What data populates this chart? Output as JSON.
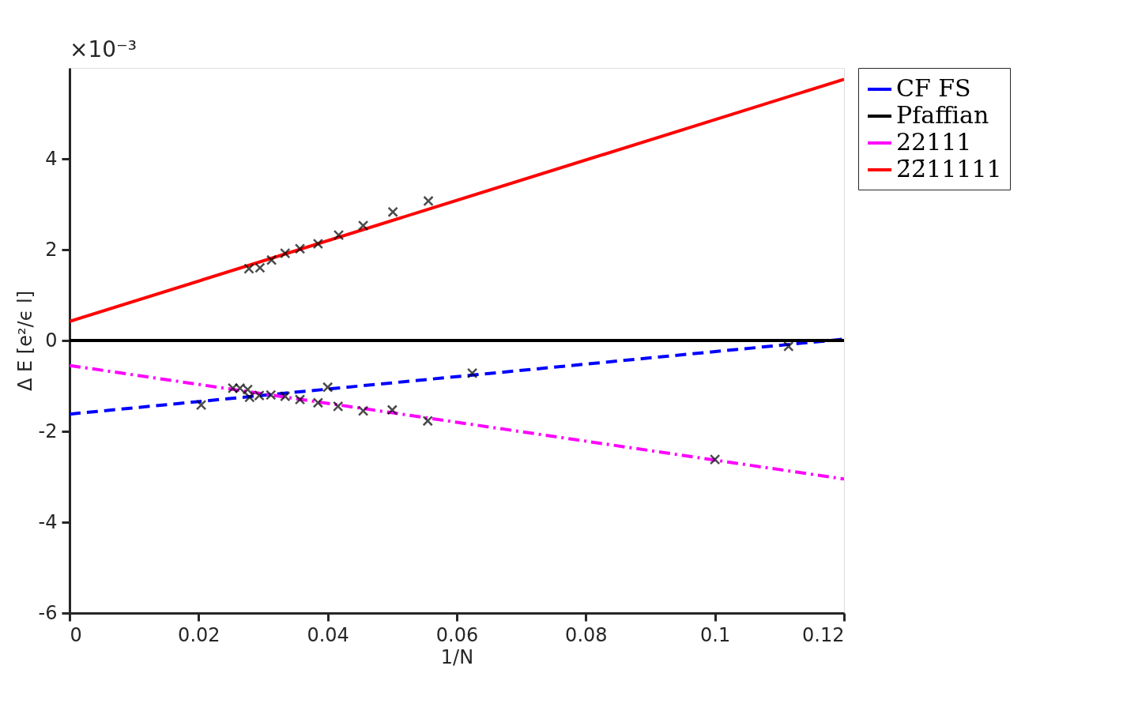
{
  "chart_data": {
    "type": "line",
    "xlabel": "1/N",
    "ylabel": "Δ E [e²/ϵ l]",
    "annotations": [
      "×10⁻³"
    ],
    "xlim": [
      0,
      0.12
    ],
    "xticks": [
      0,
      0.02,
      0.04,
      0.06,
      0.08,
      0.1,
      0.12
    ],
    "ylim": [
      -6,
      6
    ],
    "yticks": [
      -6,
      -4,
      -2,
      0,
      2,
      4
    ],
    "grid": false,
    "legend": "top right",
    "series": [
      {
        "name": "CF FS",
        "type": "line",
        "color": "#0000ff",
        "line_style": "dashed",
        "x": [
          0,
          0.12
        ],
        "values": [
          -1.62,
          0.03
        ]
      },
      {
        "name": "Pfaffian",
        "type": "line",
        "color": "#000000",
        "line_style": "solid",
        "x": [
          0,
          0.12
        ],
        "values": [
          0,
          0
        ]
      },
      {
        "name": "22111",
        "type": "line",
        "color": "#ff00ff",
        "line_style": "dashdot",
        "x": [
          0,
          0.12
        ],
        "values": [
          -0.55,
          -3.05
        ]
      },
      {
        "name": "2̄2̄11111",
        "type": "line",
        "color": "#ff0000",
        "line_style": "solid",
        "x": [
          0,
          0.12
        ],
        "values": [
          0.42,
          5.75
        ]
      },
      {
        "type": "scatter",
        "color": "#000000",
        "marker": "cross",
        "x": [
          0.0278,
          0.0295,
          0.0313,
          0.0334,
          0.0357,
          0.0385,
          0.0417,
          0.0455,
          0.0501,
          0.0556,
          0.0204,
          0.0253,
          0.0264,
          0.0276,
          0.0279,
          0.0294,
          0.0312,
          0.0334,
          0.0357,
          0.0385,
          0.04,
          0.0416,
          0.0455,
          0.05,
          0.0555,
          0.0624,
          0.1,
          0.1114
        ],
        "values": [
          1.58,
          1.6,
          1.77,
          1.92,
          2.02,
          2.13,
          2.32,
          2.53,
          2.83,
          3.07,
          -1.42,
          -1.05,
          -1.05,
          -1.08,
          -1.25,
          -1.21,
          -1.2,
          -1.23,
          -1.3,
          -1.37,
          -1.03,
          -1.45,
          -1.55,
          -1.53,
          -1.77,
          -0.72,
          -2.62,
          -0.13
        ]
      }
    ]
  }
}
